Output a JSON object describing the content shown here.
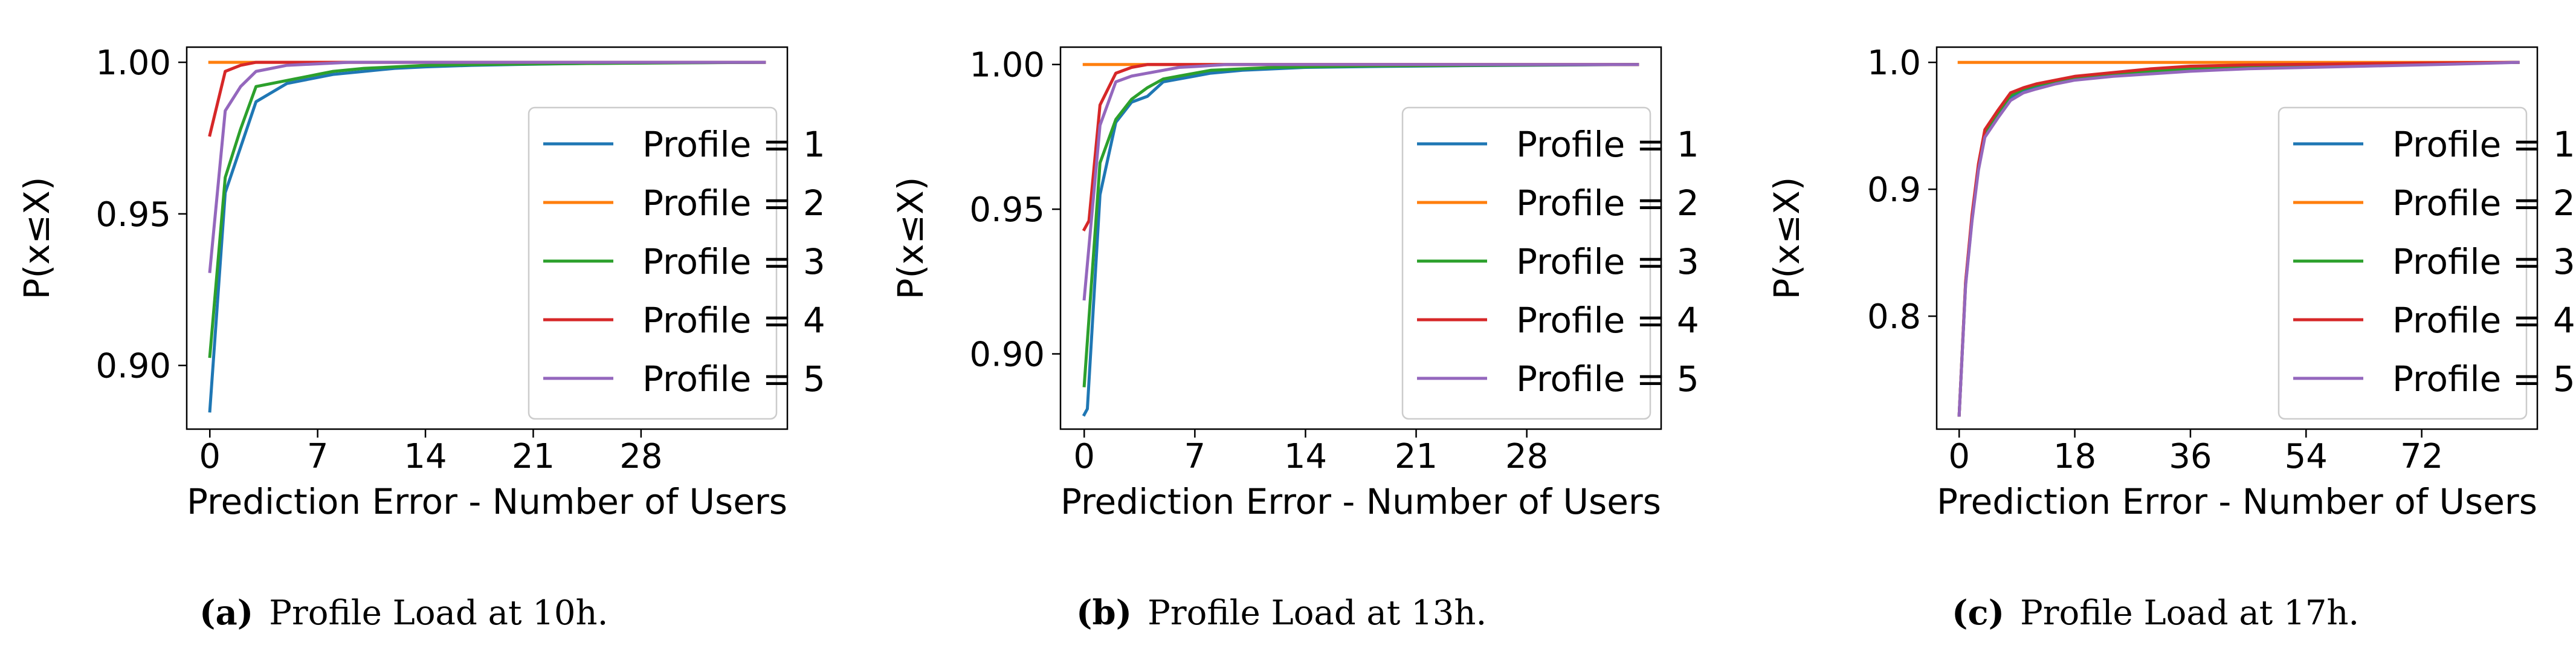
{
  "chart_data": [
    {
      "type": "line",
      "caption_label": "(a)",
      "caption_text": "Profile Load at 10h.",
      "xlabel": "Prediction Error - Number of Users",
      "ylabel": "P(x≤X)",
      "xlim": [
        -1.5,
        37.5
      ],
      "ylim": [
        0.879,
        1.005
      ],
      "xticks": [
        0,
        7,
        14,
        21,
        28
      ],
      "yticks": [
        0.9,
        0.95,
        1.0
      ],
      "ytick_labels": [
        "0.90",
        "0.95",
        "1.00"
      ],
      "grid": false,
      "legend_position": "lower-right",
      "series": [
        {
          "name": "Profile = 1",
          "color": "#1f77b4",
          "x": [
            0,
            1,
            2,
            3,
            4,
            5,
            6,
            7,
            8,
            10,
            12,
            14,
            17,
            20,
            24,
            28,
            32,
            36
          ],
          "y": [
            0.885,
            0.957,
            0.972,
            0.987,
            0.99,
            0.993,
            0.994,
            0.995,
            0.996,
            0.997,
            0.998,
            0.9985,
            0.999,
            0.9993,
            0.9996,
            0.9998,
            0.9999,
            1.0
          ]
        },
        {
          "name": "Profile = 2",
          "color": "#ff7f0e",
          "x": [
            0,
            36
          ],
          "y": [
            1.0,
            1.0
          ]
        },
        {
          "name": "Profile = 3",
          "color": "#2ca02c",
          "x": [
            0,
            1,
            2,
            3,
            4,
            5,
            6,
            7,
            8,
            10,
            12,
            14,
            18,
            24,
            30,
            36
          ],
          "y": [
            0.903,
            0.962,
            0.978,
            0.992,
            0.993,
            0.994,
            0.995,
            0.996,
            0.997,
            0.998,
            0.9985,
            0.999,
            0.9993,
            0.9996,
            0.9998,
            1.0
          ]
        },
        {
          "name": "Profile = 4",
          "color": "#d62728",
          "x": [
            0,
            1,
            2,
            3,
            4,
            36
          ],
          "y": [
            0.976,
            0.997,
            0.999,
            1.0,
            1.0,
            1.0
          ]
        },
        {
          "name": "Profile = 5",
          "color": "#9467bd",
          "x": [
            0,
            1,
            2,
            3,
            4,
            5,
            7,
            9,
            12,
            36
          ],
          "y": [
            0.931,
            0.984,
            0.992,
            0.997,
            0.998,
            0.999,
            0.9995,
            1.0,
            1.0,
            1.0
          ]
        }
      ]
    },
    {
      "type": "line",
      "caption_label": "(b)",
      "caption_text": "Profile Load at 13h.",
      "xlabel": "Prediction Error - Number of Users",
      "ylabel": "P(x≤X)",
      "xlim": [
        -1.5,
        36.5
      ],
      "ylim": [
        0.874,
        1.006
      ],
      "xticks": [
        0,
        7,
        14,
        21,
        28
      ],
      "yticks": [
        0.9,
        0.95,
        1.0
      ],
      "ytick_labels": [
        "0.90",
        "0.95",
        "1.00"
      ],
      "grid": false,
      "legend_position": "lower-right",
      "series": [
        {
          "name": "Profile = 1",
          "color": "#1f77b4",
          "x": [
            0,
            0.2,
            1,
            2,
            3,
            4,
            5,
            6,
            7,
            8,
            10,
            12,
            14,
            18,
            24,
            30,
            35
          ],
          "y": [
            0.879,
            0.881,
            0.955,
            0.98,
            0.987,
            0.989,
            0.994,
            0.995,
            0.996,
            0.997,
            0.998,
            0.9985,
            0.999,
            0.9993,
            0.9996,
            0.9998,
            1.0
          ]
        },
        {
          "name": "Profile = 2",
          "color": "#ff7f0e",
          "x": [
            0,
            35
          ],
          "y": [
            1.0,
            1.0
          ]
        },
        {
          "name": "Profile = 3",
          "color": "#2ca02c",
          "x": [
            0,
            1,
            2,
            3,
            4,
            5,
            6,
            7,
            8,
            10,
            12,
            14,
            18,
            24,
            30,
            35
          ],
          "y": [
            0.889,
            0.966,
            0.981,
            0.988,
            0.992,
            0.995,
            0.996,
            0.997,
            0.998,
            0.9985,
            0.999,
            0.9992,
            0.9995,
            0.9997,
            0.9999,
            1.0
          ]
        },
        {
          "name": "Profile = 4",
          "color": "#d62728",
          "x": [
            0,
            0.3,
            1,
            2,
            3,
            4,
            5,
            6,
            35
          ],
          "y": [
            0.943,
            0.946,
            0.986,
            0.997,
            0.999,
            1.0,
            1.0,
            1.0,
            1.0
          ]
        },
        {
          "name": "Profile = 5",
          "color": "#9467bd",
          "x": [
            0,
            1,
            2,
            3,
            4,
            5,
            6,
            7,
            9,
            12,
            35
          ],
          "y": [
            0.919,
            0.979,
            0.994,
            0.996,
            0.997,
            0.998,
            0.999,
            0.9993,
            1.0,
            1.0,
            1.0
          ]
        }
      ]
    },
    {
      "type": "line",
      "caption_label": "(c)",
      "caption_text": "Profile Load at 17h.",
      "xlabel": "Prediction Error - Number of Users",
      "ylabel": "P(x≤X)",
      "xlim": [
        -3.5,
        90
      ],
      "ylim": [
        0.711,
        1.012
      ],
      "xticks": [
        0,
        18,
        36,
        54,
        72
      ],
      "yticks": [
        0.8,
        0.9,
        1.0
      ],
      "ytick_labels": [
        "0.8",
        "0.9",
        "1.0"
      ],
      "grid": false,
      "legend_position": "lower-right",
      "series": [
        {
          "name": "Profile = 1",
          "color": "#1f77b4",
          "x": [
            0,
            1,
            2,
            3,
            4,
            6,
            8,
            10,
            12,
            15,
            18,
            24,
            30,
            36,
            45,
            54,
            63,
            72,
            80,
            87
          ],
          "y": [
            0.722,
            0.825,
            0.876,
            0.917,
            0.943,
            0.958,
            0.972,
            0.978,
            0.981,
            0.984,
            0.988,
            0.991,
            0.993,
            0.995,
            0.996,
            0.997,
            0.998,
            0.999,
            0.9995,
            1.0
          ]
        },
        {
          "name": "Profile = 2",
          "color": "#ff7f0e",
          "x": [
            0,
            87
          ],
          "y": [
            1.0,
            1.0
          ]
        },
        {
          "name": "Profile = 3",
          "color": "#2ca02c",
          "x": [
            0,
            1,
            2,
            3,
            4,
            6,
            8,
            10,
            12,
            15,
            18,
            24,
            30,
            36,
            45,
            54,
            63,
            72,
            80,
            87
          ],
          "y": [
            0.722,
            0.826,
            0.878,
            0.918,
            0.945,
            0.96,
            0.974,
            0.979,
            0.982,
            0.985,
            0.988,
            0.991,
            0.993,
            0.995,
            0.996,
            0.997,
            0.998,
            0.999,
            0.9995,
            1.0
          ]
        },
        {
          "name": "Profile = 4",
          "color": "#d62728",
          "x": [
            0,
            1,
            2,
            3,
            4,
            6,
            8,
            10,
            12,
            15,
            18,
            24,
            30,
            36,
            45,
            54,
            63,
            72,
            87
          ],
          "y": [
            0.722,
            0.827,
            0.88,
            0.92,
            0.947,
            0.962,
            0.976,
            0.98,
            0.983,
            0.986,
            0.989,
            0.992,
            0.995,
            0.997,
            0.998,
            0.9985,
            0.999,
            0.9995,
            1.0
          ]
        },
        {
          "name": "Profile = 5",
          "color": "#9467bd",
          "x": [
            0,
            1,
            2,
            3,
            4,
            6,
            8,
            10,
            12,
            15,
            18,
            24,
            30,
            36,
            45,
            54,
            63,
            72,
            80,
            87
          ],
          "y": [
            0.722,
            0.824,
            0.875,
            0.915,
            0.941,
            0.956,
            0.97,
            0.976,
            0.979,
            0.983,
            0.986,
            0.989,
            0.991,
            0.993,
            0.995,
            0.996,
            0.997,
            0.998,
            0.999,
            1.0
          ]
        }
      ]
    }
  ]
}
